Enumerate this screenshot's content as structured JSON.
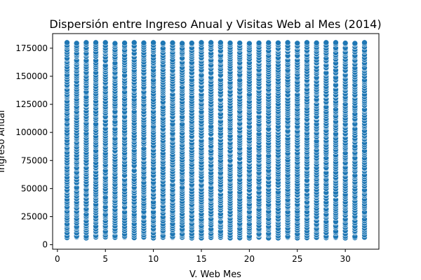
{
  "chart_data": {
    "type": "scatter",
    "title": "Dispersión entre Ingreso Anual y Visitas Web al Mes (2014)",
    "xlabel": "V. Web Mes",
    "ylabel": "Ingreso Anual",
    "xlim": [
      -0.5,
      33.5
    ],
    "ylim": [
      -4000,
      188000
    ],
    "xticks": [
      0,
      5,
      10,
      15,
      20,
      25,
      30
    ],
    "yticks": [
      0,
      25000,
      50000,
      75000,
      100000,
      125000,
      150000,
      175000
    ],
    "x_values": [
      1,
      2,
      3,
      4,
      5,
      6,
      7,
      8,
      9,
      10,
      11,
      12,
      13,
      14,
      15,
      16,
      17,
      18,
      19,
      20,
      21,
      22,
      23,
      24,
      25,
      26,
      27,
      28,
      29,
      30,
      31,
      32
    ],
    "y_range_per_x": [
      6000,
      180000
    ],
    "marker": {
      "color": "#1f77b4",
      "edge": "#ffffff"
    },
    "grid": false,
    "legend": "none"
  }
}
